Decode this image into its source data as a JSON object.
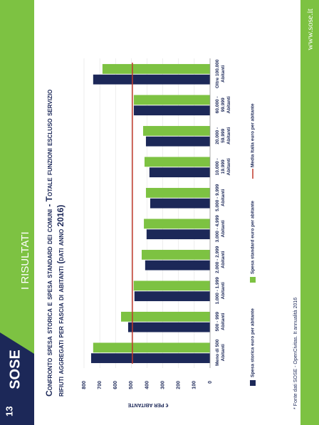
{
  "header": {
    "page_number": "13",
    "logo": "SOSE",
    "section": "I RISULTATI",
    "url": "www.sose.it"
  },
  "footnote": "* Fonte dati SOSE - OpenCivitas. It annualità 2016",
  "chart_data": {
    "type": "bar",
    "title": [
      "Confronto spesa storica e spesa standard dei comuni - Totale funzioni escluso servizio",
      "rifiuti aggregati per fascia di abitanti (dati anno 2016)"
    ],
    "y_label": "€ PER ABITANTE",
    "categories": [
      [
        "Meno di 500",
        "Abitanti"
      ],
      [
        "500 - 999",
        "Abitanti"
      ],
      [
        "1.000 - 1.999",
        "Abitanti"
      ],
      [
        "2.000 - 2.999",
        "Abitanti"
      ],
      [
        "3.000 - 4.999",
        "Abitanti"
      ],
      [
        "5.000 - 9.999",
        "Abitanti"
      ],
      [
        "10.000 -",
        "19.999",
        "Abitanti"
      ],
      [
        "20.000 -",
        "59.999",
        "Abitanti"
      ],
      [
        "60.000 -",
        "99.999",
        "Abitanti"
      ],
      [
        "Oltre 100.000",
        "Abitanti"
      ]
    ],
    "series": [
      {
        "name": "Spesa storica euro per abitante",
        "color": "#1c2858",
        "mark": "bar",
        "values": [
          755,
          520,
          480,
          412,
          403,
          380,
          385,
          407,
          484,
          742
        ]
      },
      {
        "name": "Spesa standard euro per abitante",
        "color": "#7dc242",
        "mark": "bar",
        "values": [
          742,
          565,
          485,
          434,
          420,
          407,
          416,
          425,
          484,
          683
        ]
      },
      {
        "name": "Media Italia euro per abitante",
        "color": "#c0392b",
        "mark": "line",
        "values": [
          493,
          493,
          493,
          493,
          493,
          493,
          493,
          493,
          493,
          493
        ]
      }
    ],
    "ylim": [
      0,
      800
    ],
    "yticks": [
      0,
      100,
      200,
      300,
      400,
      500,
      600,
      700,
      800
    ],
    "grid": true
  }
}
